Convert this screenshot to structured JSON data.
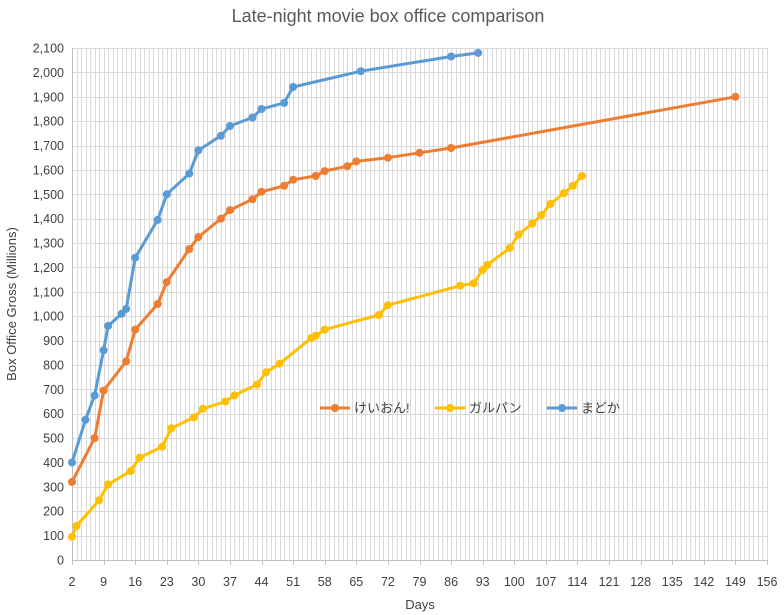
{
  "chart_data": {
    "type": "line",
    "title": "Late-night movie box office comparison",
    "xlabel": "Days",
    "ylabel": "Box Office Gross (Millions)",
    "xlim": [
      2,
      156
    ],
    "ylim": [
      0,
      2100
    ],
    "x_ticks": [
      2,
      9,
      16,
      23,
      30,
      37,
      44,
      51,
      58,
      65,
      72,
      79,
      86,
      93,
      100,
      107,
      114,
      121,
      128,
      135,
      142,
      149,
      156
    ],
    "y_ticks": [
      0,
      100,
      200,
      300,
      400,
      500,
      600,
      700,
      800,
      900,
      1000,
      1100,
      1200,
      1300,
      1400,
      1500,
      1600,
      1700,
      1800,
      1900,
      2000,
      2100
    ],
    "y_tick_labels": [
      "0",
      "100",
      "200",
      "300",
      "400",
      "500",
      "600",
      "700",
      "800",
      "900",
      "1,000",
      "1,100",
      "1,200",
      "1,300",
      "1,400",
      "1,500",
      "1,600",
      "1,700",
      "1,800",
      "1,900",
      "2,000",
      "2,100"
    ],
    "grid": true,
    "legend_position": "center-right",
    "series": [
      {
        "name": "けいおん!",
        "color": "#ed7d31",
        "points": [
          [
            2,
            320
          ],
          [
            7,
            500
          ],
          [
            9,
            695
          ],
          [
            14,
            815
          ],
          [
            16,
            945
          ],
          [
            21,
            1050
          ],
          [
            23,
            1140
          ],
          [
            28,
            1275
          ],
          [
            30,
            1325
          ],
          [
            35,
            1400
          ],
          [
            37,
            1435
          ],
          [
            42,
            1480
          ],
          [
            44,
            1510
          ],
          [
            49,
            1535
          ],
          [
            51,
            1560
          ],
          [
            56,
            1575
          ],
          [
            58,
            1595
          ],
          [
            63,
            1615
          ],
          [
            65,
            1635
          ],
          [
            72,
            1650
          ],
          [
            79,
            1670
          ],
          [
            86,
            1690
          ],
          [
            149,
            1900
          ]
        ]
      },
      {
        "name": "ガルパン",
        "color": "#ffc000",
        "points": [
          [
            2,
            95
          ],
          [
            3,
            140
          ],
          [
            8,
            245
          ],
          [
            10,
            310
          ],
          [
            15,
            365
          ],
          [
            17,
            420
          ],
          [
            22,
            465
          ],
          [
            24,
            540
          ],
          [
            29,
            585
          ],
          [
            31,
            620
          ],
          [
            36,
            650
          ],
          [
            38,
            675
          ],
          [
            43,
            720
          ],
          [
            45,
            770
          ],
          [
            48,
            805
          ],
          [
            55,
            910
          ],
          [
            56,
            920
          ],
          [
            58,
            945
          ],
          [
            70,
            1005
          ],
          [
            72,
            1045
          ],
          [
            88,
            1125
          ],
          [
            91,
            1135
          ],
          [
            93,
            1190
          ],
          [
            94,
            1210
          ],
          [
            99,
            1280
          ],
          [
            101,
            1335
          ],
          [
            104,
            1380
          ],
          [
            106,
            1415
          ],
          [
            108,
            1460
          ],
          [
            111,
            1505
          ],
          [
            113,
            1535
          ],
          [
            115,
            1575
          ]
        ]
      },
      {
        "name": "まどか",
        "color": "#5b9bd5",
        "points": [
          [
            2,
            400
          ],
          [
            5,
            575
          ],
          [
            7,
            675
          ],
          [
            9,
            860
          ],
          [
            10,
            960
          ],
          [
            13,
            1010
          ],
          [
            14,
            1030
          ],
          [
            16,
            1240
          ],
          [
            21,
            1395
          ],
          [
            23,
            1500
          ],
          [
            28,
            1585
          ],
          [
            30,
            1680
          ],
          [
            35,
            1740
          ],
          [
            37,
            1780
          ],
          [
            42,
            1815
          ],
          [
            44,
            1850
          ],
          [
            49,
            1875
          ],
          [
            51,
            1940
          ],
          [
            66,
            2005
          ],
          [
            86,
            2065
          ],
          [
            92,
            2080
          ]
        ]
      }
    ]
  }
}
